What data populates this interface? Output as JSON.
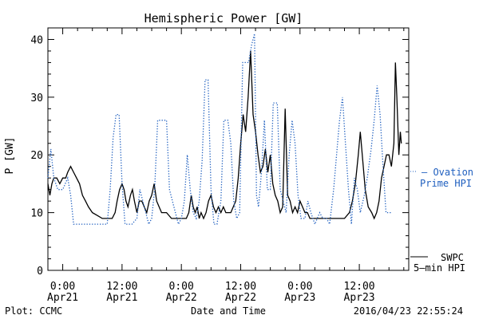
{
  "chart_data": {
    "type": "line",
    "title": "Hemispheric Power [GW]",
    "xlabel": "Date and Time",
    "ylabel": "P [GW]",
    "ylim": [
      0,
      42
    ],
    "xlim_hours": [
      -3,
      70
    ],
    "yticks": [
      0,
      10,
      20,
      30,
      40
    ],
    "xticks": [
      {
        "hour": 0,
        "time": "0:00",
        "date": "Apr21"
      },
      {
        "hour": 12,
        "time": "12:00",
        "date": "Apr21"
      },
      {
        "hour": 24,
        "time": "0:00",
        "date": "Apr22"
      },
      {
        "hour": 36,
        "time": "12:00",
        "date": "Apr22"
      },
      {
        "hour": 48,
        "time": "0:00",
        "date": "Apr23"
      },
      {
        "hour": 60,
        "time": "12:00",
        "date": "Apr23"
      }
    ],
    "grid": false,
    "series": [
      {
        "name": "SWPC 5-min HPI",
        "color": "#000000",
        "style": "solid",
        "points": [
          [
            -3,
            15
          ],
          [
            -2.6,
            13
          ],
          [
            -2.2,
            15
          ],
          [
            -1.8,
            16
          ],
          [
            -1.2,
            16
          ],
          [
            -0.6,
            15
          ],
          [
            0,
            16
          ],
          [
            0.6,
            16
          ],
          [
            1,
            17
          ],
          [
            1.6,
            18
          ],
          [
            2.2,
            17
          ],
          [
            2.8,
            16
          ],
          [
            3.4,
            15
          ],
          [
            4,
            13
          ],
          [
            4.6,
            12
          ],
          [
            5.2,
            11
          ],
          [
            6,
            10
          ],
          [
            7,
            9.5
          ],
          [
            8,
            9
          ],
          [
            9,
            9
          ],
          [
            10,
            9
          ],
          [
            10.6,
            10
          ],
          [
            11,
            12
          ],
          [
            11.5,
            14
          ],
          [
            12,
            15
          ],
          [
            12.4,
            14
          ],
          [
            12.8,
            12
          ],
          [
            13.2,
            11
          ],
          [
            13.7,
            13
          ],
          [
            14.1,
            14
          ],
          [
            14.5,
            12
          ],
          [
            15,
            10
          ],
          [
            15.5,
            12
          ],
          [
            16,
            12
          ],
          [
            16.5,
            11
          ],
          [
            17,
            10
          ],
          [
            17.5,
            12
          ],
          [
            18,
            13
          ],
          [
            18.5,
            15
          ],
          [
            19,
            12
          ],
          [
            19.5,
            11
          ],
          [
            20,
            10
          ],
          [
            21,
            10
          ],
          [
            22,
            9
          ],
          [
            23,
            9
          ],
          [
            24,
            9
          ],
          [
            25,
            9
          ],
          [
            25.5,
            10
          ],
          [
            26,
            13
          ],
          [
            26.4,
            11
          ],
          [
            26.8,
            10
          ],
          [
            27.2,
            11
          ],
          [
            27.6,
            9
          ],
          [
            28,
            10
          ],
          [
            28.5,
            9
          ],
          [
            29,
            10
          ],
          [
            29.5,
            12
          ],
          [
            30,
            13
          ],
          [
            30.5,
            11
          ],
          [
            31,
            10
          ],
          [
            31.5,
            11
          ],
          [
            32,
            10
          ],
          [
            32.5,
            11
          ],
          [
            33,
            10
          ],
          [
            34,
            10
          ],
          [
            35,
            12
          ],
          [
            35.5,
            16
          ],
          [
            36,
            22
          ],
          [
            36.5,
            27
          ],
          [
            37,
            24
          ],
          [
            37.5,
            30
          ],
          [
            38,
            38
          ],
          [
            38.5,
            27
          ],
          [
            39,
            24
          ],
          [
            39.5,
            20
          ],
          [
            40,
            17
          ],
          [
            40.5,
            18
          ],
          [
            41,
            21
          ],
          [
            41.5,
            17
          ],
          [
            42,
            20
          ],
          [
            42.5,
            15
          ],
          [
            43,
            13
          ],
          [
            43.5,
            12
          ],
          [
            44,
            10
          ],
          [
            44.5,
            11
          ],
          [
            45,
            28
          ],
          [
            45.5,
            13
          ],
          [
            46,
            12
          ],
          [
            46.5,
            10
          ],
          [
            47,
            11
          ],
          [
            47.5,
            10
          ],
          [
            48,
            12
          ],
          [
            48.5,
            11
          ],
          [
            49,
            10
          ],
          [
            49.5,
            10
          ],
          [
            50,
            9
          ],
          [
            51,
            9
          ],
          [
            52,
            9
          ],
          [
            53,
            9
          ],
          [
            54,
            9
          ],
          [
            55,
            9
          ],
          [
            56,
            9
          ],
          [
            57,
            9
          ],
          [
            58,
            10
          ],
          [
            58.6,
            12
          ],
          [
            59.2,
            15
          ],
          [
            59.8,
            20
          ],
          [
            60.2,
            24
          ],
          [
            60.7,
            19
          ],
          [
            61.2,
            14
          ],
          [
            61.8,
            11
          ],
          [
            62.5,
            10
          ],
          [
            63,
            9
          ],
          [
            63.5,
            10
          ],
          [
            64,
            12
          ],
          [
            64.5,
            16
          ],
          [
            65,
            18
          ],
          [
            65.5,
            20
          ],
          [
            66,
            20
          ],
          [
            66.5,
            18
          ],
          [
            67,
            22
          ],
          [
            67.3,
            36
          ],
          [
            67.6,
            30
          ],
          [
            68,
            20
          ],
          [
            68.3,
            24
          ],
          [
            68.5,
            22
          ]
        ]
      },
      {
        "name": "Ovation Prime HPI",
        "color": "#1f5fbf",
        "style": "dotted",
        "points": [
          [
            -3,
            16
          ],
          [
            -2.4,
            21
          ],
          [
            -1.8,
            16
          ],
          [
            -1,
            14
          ],
          [
            0,
            14
          ],
          [
            1,
            16
          ],
          [
            1.6,
            13
          ],
          [
            2.2,
            8
          ],
          [
            4,
            8
          ],
          [
            6,
            8
          ],
          [
            8,
            8
          ],
          [
            9,
            8
          ],
          [
            9.6,
            14
          ],
          [
            10.2,
            23
          ],
          [
            10.8,
            27
          ],
          [
            11.4,
            27
          ],
          [
            12,
            15
          ],
          [
            12.6,
            8
          ],
          [
            14,
            8
          ],
          [
            15,
            9
          ],
          [
            15.6,
            14
          ],
          [
            16.2,
            12
          ],
          [
            16.8,
            10
          ],
          [
            17.4,
            8
          ],
          [
            18,
            9
          ],
          [
            18.6,
            14
          ],
          [
            19.2,
            26
          ],
          [
            20,
            26
          ],
          [
            21,
            26
          ],
          [
            21.6,
            14
          ],
          [
            22.2,
            12
          ],
          [
            22.8,
            10
          ],
          [
            23.4,
            8
          ],
          [
            24,
            9
          ],
          [
            24.6,
            12
          ],
          [
            25.2,
            20
          ],
          [
            25.8,
            14
          ],
          [
            26.4,
            10
          ],
          [
            27,
            9
          ],
          [
            27.6,
            12
          ],
          [
            28.2,
            19
          ],
          [
            28.8,
            33
          ],
          [
            29.4,
            33
          ],
          [
            30,
            14
          ],
          [
            30.6,
            8
          ],
          [
            31.2,
            8
          ],
          [
            32,
            12
          ],
          [
            32.6,
            26
          ],
          [
            33.4,
            26
          ],
          [
            34,
            22
          ],
          [
            34.6,
            12
          ],
          [
            35.2,
            9
          ],
          [
            35.8,
            10
          ],
          [
            36.4,
            36
          ],
          [
            37.6,
            36
          ],
          [
            38.2,
            39
          ],
          [
            38.8,
            41
          ],
          [
            39.2,
            13
          ],
          [
            39.6,
            11
          ],
          [
            40.2,
            17
          ],
          [
            40.8,
            26
          ],
          [
            41.4,
            14
          ],
          [
            42,
            14
          ],
          [
            42.6,
            29
          ],
          [
            43.4,
            29
          ],
          [
            44,
            14
          ],
          [
            44.6,
            12
          ],
          [
            45.2,
            10
          ],
          [
            45.8,
            20
          ],
          [
            46.4,
            26
          ],
          [
            47,
            22
          ],
          [
            47.6,
            13
          ],
          [
            48.2,
            9
          ],
          [
            49,
            9
          ],
          [
            49.6,
            12
          ],
          [
            50.2,
            10
          ],
          [
            51,
            8
          ],
          [
            52,
            10
          ],
          [
            52.6,
            9
          ],
          [
            53.4,
            9
          ],
          [
            54,
            8
          ],
          [
            54.8,
            14
          ],
          [
            55.4,
            20
          ],
          [
            56,
            26
          ],
          [
            56.6,
            30
          ],
          [
            57.2,
            22
          ],
          [
            57.8,
            14
          ],
          [
            58.4,
            8
          ],
          [
            59,
            16
          ],
          [
            59.6,
            14
          ],
          [
            60.2,
            10
          ],
          [
            61,
            13
          ],
          [
            61.6,
            16
          ],
          [
            62.4,
            21
          ],
          [
            63,
            26
          ],
          [
            63.6,
            32
          ],
          [
            64.2,
            27
          ],
          [
            64.8,
            18
          ],
          [
            65.4,
            10
          ],
          [
            66,
            10
          ],
          [
            66.6,
            10
          ]
        ]
      }
    ],
    "legend": [
      {
        "name": "Ovation Prime HPI",
        "line1": "— Ovation",
        "line2": "Prime HPI",
        "placement": "right-middle",
        "color": "#1f5fbf"
      },
      {
        "name": "SWPC 5-min HPI",
        "line1": "SWPC",
        "line2": "5—min HPI",
        "placement": "right-bottom",
        "color": "#000000"
      }
    ],
    "annotations": {
      "left": "Plot: CCMC",
      "right": "2016/04/23 22:55:24"
    }
  }
}
